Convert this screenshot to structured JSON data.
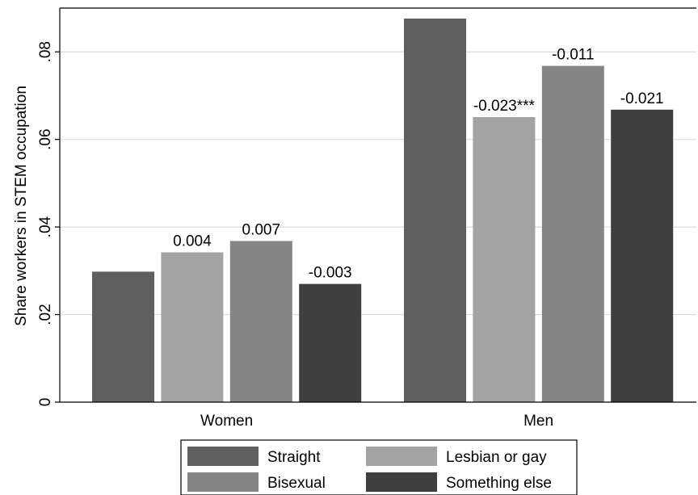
{
  "chart_data": {
    "type": "bar",
    "ylabel": "Share workers in STEM occupation",
    "ylim": [
      0,
      0.09
    ],
    "yticks": [
      {
        "value": 0,
        "label": "0"
      },
      {
        "value": 0.02,
        "label": ".02"
      },
      {
        "value": 0.04,
        "label": ".04"
      },
      {
        "value": 0.06,
        "label": ".06"
      },
      {
        "value": 0.08,
        "label": ".08"
      }
    ],
    "grid": true,
    "legend_position": "bottom",
    "categories": [
      "Women",
      "Men"
    ],
    "series": [
      {
        "name": "Straight",
        "color": "#5f5f5f",
        "values": [
          0.0298,
          0.0876
        ],
        "labels": [
          "",
          ""
        ]
      },
      {
        "name": "Lesbian or gay",
        "color": "#a3a3a3",
        "values": [
          0.0342,
          0.0651
        ],
        "labels": [
          "0.004",
          "-0.023***"
        ]
      },
      {
        "name": "Bisexual",
        "color": "#858585",
        "values": [
          0.0368,
          0.0768
        ],
        "labels": [
          "0.007",
          "-0.011"
        ]
      },
      {
        "name": "Something else",
        "color": "#3f3f3f",
        "values": [
          0.027,
          0.0668
        ],
        "labels": [
          "-0.003",
          "-0.021"
        ]
      }
    ]
  }
}
